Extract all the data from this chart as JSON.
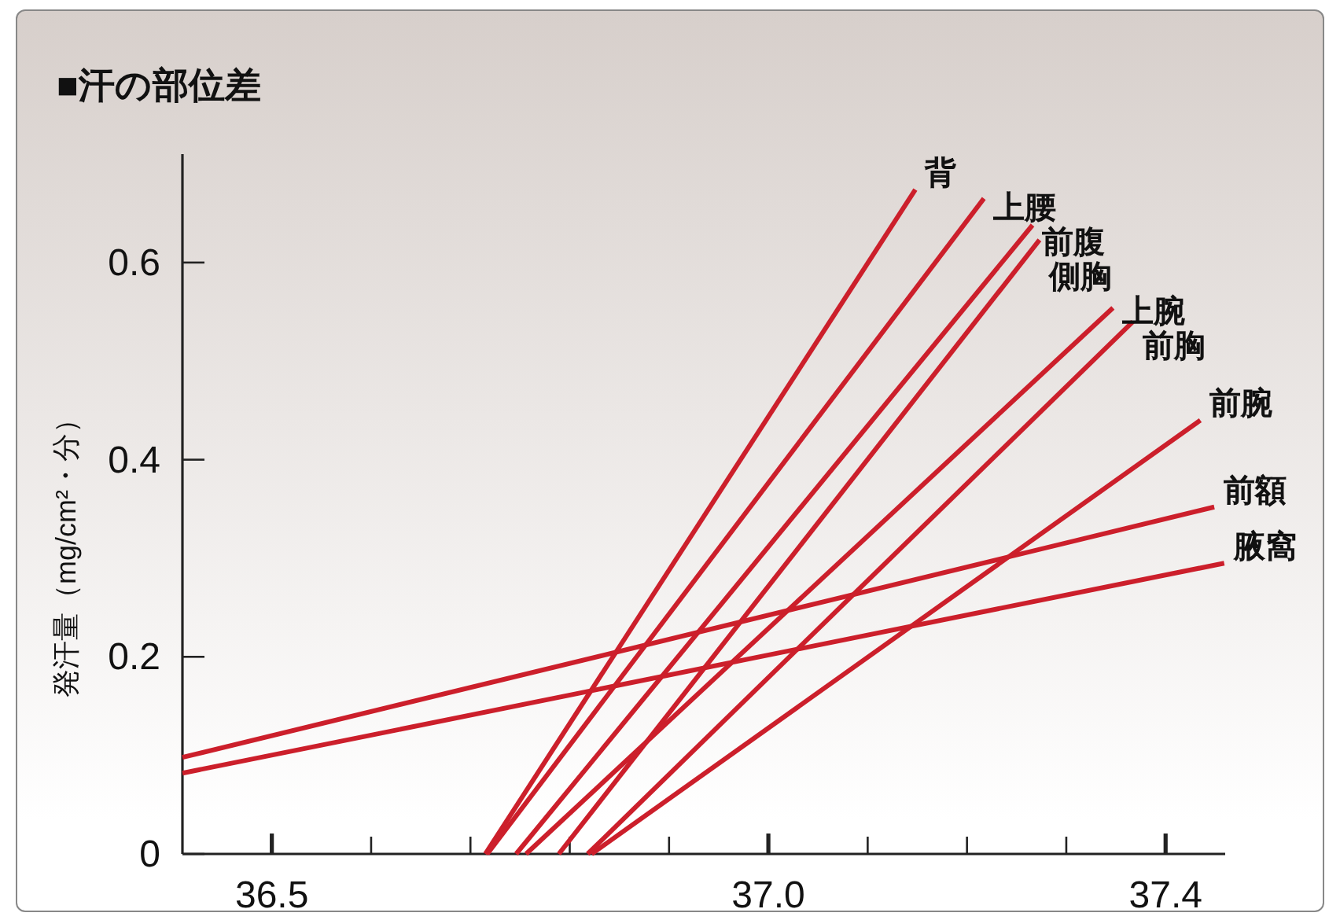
{
  "chart_data": {
    "type": "line",
    "title": "■汗の部位差",
    "ylabel": "発汗量（mg/cm²・分）",
    "xlim": [
      36.41,
      37.46
    ],
    "ylim": [
      0,
      0.71
    ],
    "xticks": [
      {
        "value": 36.5,
        "label": "36.5"
      },
      {
        "value": 36.6,
        "label": null
      },
      {
        "value": 36.7,
        "label": null
      },
      {
        "value": 36.8,
        "label": null
      },
      {
        "value": 36.9,
        "label": null
      },
      {
        "value": 37.0,
        "label": "37.0"
      },
      {
        "value": 37.1,
        "label": null
      },
      {
        "value": 37.2,
        "label": null
      },
      {
        "value": 37.3,
        "label": null
      },
      {
        "value": 37.4,
        "label": "37.4"
      }
    ],
    "yticks": [
      0,
      0.2,
      0.4,
      0.6
    ],
    "grid": false,
    "legend": false,
    "marker": "none",
    "line_style": "solid",
    "series": [
      {
        "name": "背",
        "color": "#cc1f2b",
        "x": [
          36.715,
          37.148
        ],
        "values": [
          0,
          0.674
        ]
      },
      {
        "name": "上腰",
        "color": "#cc1f2b",
        "x": [
          36.717,
          37.217
        ],
        "values": [
          0,
          0.665
        ]
      },
      {
        "name": "前腹",
        "color": "#cc1f2b",
        "x": [
          36.746,
          37.266
        ],
        "values": [
          0,
          0.638
        ]
      },
      {
        "name": "側胸",
        "color": "#cc1f2b",
        "x": [
          36.789,
          37.273
        ],
        "values": [
          0,
          0.623
        ]
      },
      {
        "name": "上腕",
        "color": "#cc1f2b",
        "x": [
          36.756,
          37.347
        ],
        "values": [
          0,
          0.554
        ]
      },
      {
        "name": "前胸",
        "color": "#cc1f2b",
        "x": [
          36.818,
          37.367
        ],
        "values": [
          0,
          0.54
        ]
      },
      {
        "name": "前腕",
        "color": "#cc1f2b",
        "x": [
          36.822,
          37.435
        ],
        "values": [
          0,
          0.44
        ]
      },
      {
        "name": "前額",
        "color": "#cc1f2b",
        "x": [
          36.41,
          37.449
        ],
        "values": [
          0.098,
          0.352
        ]
      },
      {
        "name": "腋窩",
        "color": "#cc1f2b",
        "x": [
          36.41,
          37.459
        ],
        "values": [
          0.082,
          0.295
        ]
      }
    ]
  }
}
